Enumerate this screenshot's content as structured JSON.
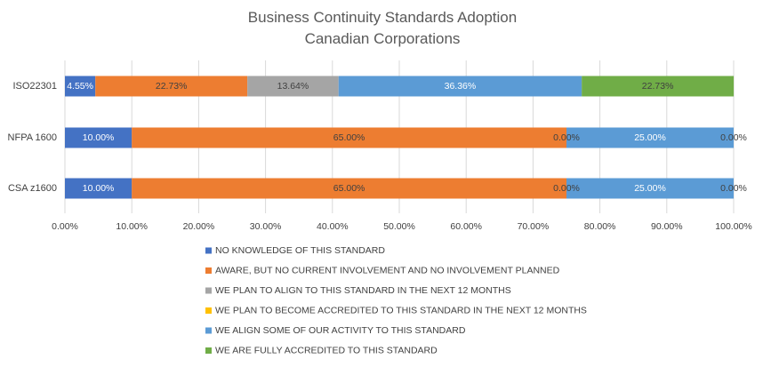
{
  "chart_data": {
    "type": "bar",
    "orientation": "horizontal",
    "stacked": true,
    "title": "Business Continuity Standards Adoption",
    "subtitle": "Canadian Corporations",
    "categories": [
      "ISO22301",
      "NFPA 1600",
      "CSA z1600"
    ],
    "xlim": [
      0,
      100
    ],
    "x_ticks": [
      "0.00%",
      "10.00%",
      "20.00%",
      "30.00%",
      "40.00%",
      "50.00%",
      "60.00%",
      "70.00%",
      "80.00%",
      "90.00%",
      "100.00%"
    ],
    "grid": true,
    "legend_position": "bottom",
    "series": [
      {
        "name": "NO KNOWLEDGE OF THIS STANDARD",
        "color": "#4472c4",
        "values": [
          4.55,
          10.0,
          10.0
        ],
        "labels": [
          "4.55%",
          "10.00%",
          "10.00%"
        ]
      },
      {
        "name": "AWARE, BUT NO CURRENT INVOLVEMENT AND NO INVOLVEMENT PLANNED",
        "color": "#ed7d31",
        "values": [
          22.73,
          65.0,
          65.0
        ],
        "labels": [
          "22.73%",
          "65.00%",
          "65.00%"
        ]
      },
      {
        "name": "WE PLAN TO ALIGN TO THIS STANDARD IN THE NEXT 12 MONTHS",
        "color": "#a5a5a5",
        "values": [
          13.64,
          0.0,
          0.0
        ],
        "labels": [
          "13.64%",
          "0.00%",
          "0.00%"
        ]
      },
      {
        "name": "WE PLAN TO BECOME ACCREDITED TO THIS STANDARD IN THE NEXT 12 MONTHS",
        "color": "#ffc000",
        "values": [
          0.0,
          0.0,
          0.0
        ],
        "labels": [
          "",
          "",
          ""
        ]
      },
      {
        "name": "WE ALIGN SOME OF OUR ACTIVITY TO THIS STANDARD",
        "color": "#5b9bd5",
        "values": [
          36.36,
          25.0,
          25.0
        ],
        "labels": [
          "36.36%",
          "25.00%",
          "25.00%"
        ]
      },
      {
        "name": "WE ARE FULLY ACCREDITED TO THIS STANDARD",
        "color": "#70ad47",
        "values": [
          22.73,
          0.0,
          0.0
        ],
        "labels": [
          "22.73%",
          "0.00%",
          "0.00%"
        ]
      }
    ]
  }
}
